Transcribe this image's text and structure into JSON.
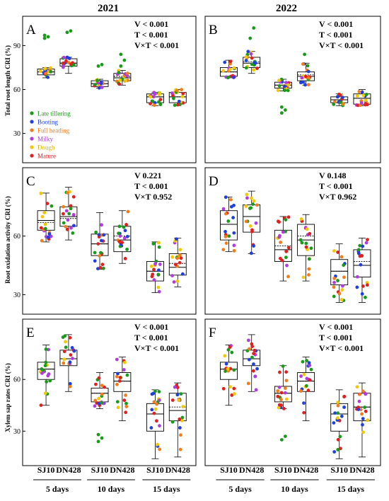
{
  "years": [
    "2021",
    "2022"
  ],
  "groups": [
    {
      "label": "5 days",
      "cultivars": [
        "SJ10",
        "DN428"
      ]
    },
    {
      "label": "10 days",
      "cultivars": [
        "SJ10",
        "DN428"
      ]
    },
    {
      "label": "15 days",
      "cultivars": [
        "SJ10",
        "DN428"
      ]
    }
  ],
  "legend": {
    "title_note": "",
    "items": [
      {
        "name": "Late tillering",
        "color": "#1a9a1a"
      },
      {
        "name": "Booting",
        "color": "#1f3fe0"
      },
      {
        "name": "Full heading",
        "color": "#f07c1c"
      },
      {
        "name": "Milky",
        "color": "#b03be0"
      },
      {
        "name": "Dough",
        "color": "#f0c800"
      },
      {
        "name": "Mature",
        "color": "#e02020"
      }
    ]
  },
  "chart_data": [
    {
      "type": "box",
      "panel": "A",
      "year": "2021",
      "ylabel": "Total root length CRI (%)",
      "ylim": [
        10,
        110
      ],
      "yticks": [
        30,
        60,
        90
      ],
      "stats": [
        "V < 0.001",
        "T < 0.001",
        "V×T < 0.001"
      ],
      "boxes": [
        {
          "cultivar": "SJ10",
          "period": "5 days",
          "q1": 70,
          "median": 72,
          "mean": 72,
          "q3": 74,
          "min": 68,
          "max": 75,
          "outliers": [
            95,
            96,
            97
          ]
        },
        {
          "cultivar": "DN428",
          "period": "5 days",
          "q1": 76,
          "median": 78,
          "mean": 78,
          "q3": 81,
          "min": 71,
          "max": 82,
          "outliers": [
            99,
            100
          ]
        },
        {
          "cultivar": "SJ10",
          "period": "10 days",
          "q1": 62,
          "median": 64,
          "mean": 64,
          "q3": 66,
          "min": 61,
          "max": 67,
          "outliers": [
            76,
            77
          ]
        },
        {
          "cultivar": "DN428",
          "period": "10 days",
          "q1": 66,
          "median": 68,
          "mean": 69,
          "q3": 71,
          "min": 63,
          "max": 73,
          "outliers": [
            76,
            80,
            84
          ]
        },
        {
          "cultivar": "SJ10",
          "period": "15 days",
          "q1": 51,
          "median": 55,
          "mean": 55,
          "q3": 57,
          "min": 49,
          "max": 58,
          "outliers": []
        },
        {
          "cultivar": "DN428",
          "period": "15 days",
          "q1": 51,
          "median": 55,
          "mean": 55,
          "q3": 58,
          "min": 49,
          "max": 60,
          "outliers": []
        }
      ]
    },
    {
      "type": "box",
      "panel": "B",
      "year": "2022",
      "ylabel": "",
      "ylim": [
        10,
        110
      ],
      "yticks": [
        30,
        60,
        90
      ],
      "stats": [
        "V < 0.001",
        "T < 0.001",
        "V×T < 0.001"
      ],
      "boxes": [
        {
          "cultivar": "SJ10",
          "period": "5 days",
          "q1": 69,
          "median": 72,
          "mean": 72,
          "q3": 75,
          "min": 68,
          "max": 80,
          "outliers": []
        },
        {
          "cultivar": "DN428",
          "period": "5 days",
          "q1": 75,
          "median": 78,
          "mean": 79,
          "q3": 82,
          "min": 71,
          "max": 86,
          "outliers": [
            95,
            102
          ]
        },
        {
          "cultivar": "SJ10",
          "period": "10 days",
          "q1": 61,
          "median": 63,
          "mean": 63,
          "q3": 65,
          "min": 59,
          "max": 67,
          "outliers": [
            44,
            46,
            48
          ]
        },
        {
          "cultivar": "DN428",
          "period": "10 days",
          "q1": 66,
          "median": 69,
          "mean": 70,
          "q3": 72,
          "min": 63,
          "max": 78,
          "outliers": [
            84
          ]
        },
        {
          "cultivar": "SJ10",
          "period": "15 days",
          "q1": 51,
          "median": 53,
          "mean": 53,
          "q3": 55,
          "min": 49,
          "max": 57,
          "outliers": []
        },
        {
          "cultivar": "DN428",
          "period": "15 days",
          "q1": 50,
          "median": 54,
          "mean": 54,
          "q3": 57,
          "min": 49,
          "max": 60,
          "outliers": []
        }
      ]
    },
    {
      "type": "box",
      "panel": "C",
      "year": "2021",
      "ylabel": "Root oxidation activity CRI (%)",
      "ylim": [
        20,
        95
      ],
      "yticks": [
        30,
        60
      ],
      "stats": [
        "V 0.221",
        "T < 0.001",
        "V×T 0.952"
      ],
      "boxes": [
        {
          "cultivar": "SJ10",
          "period": "5 days",
          "q1": 63,
          "median": 68,
          "mean": 67,
          "q3": 73,
          "min": 57,
          "max": 82,
          "outliers": []
        },
        {
          "cultivar": "DN428",
          "period": "5 days",
          "q1": 65,
          "median": 70,
          "mean": 69,
          "q3": 75,
          "min": 58,
          "max": 85,
          "outliers": []
        },
        {
          "cultivar": "SJ10",
          "period": "10 days",
          "q1": 50,
          "median": 56,
          "mean": 56,
          "q3": 61,
          "min": 43,
          "max": 72,
          "outliers": []
        },
        {
          "cultivar": "DN428",
          "period": "10 days",
          "q1": 52,
          "median": 58,
          "mean": 60,
          "q3": 65,
          "min": 46,
          "max": 73,
          "outliers": []
        },
        {
          "cultivar": "SJ10",
          "period": "15 days",
          "q1": 37,
          "median": 42,
          "mean": 42,
          "q3": 47,
          "min": 31,
          "max": 57,
          "outliers": []
        },
        {
          "cultivar": "DN428",
          "period": "15 days",
          "q1": 40,
          "median": 44,
          "mean": 46,
          "q3": 51,
          "min": 34,
          "max": 59,
          "outliers": []
        }
      ]
    },
    {
      "type": "box",
      "panel": "D",
      "year": "2022",
      "ylabel": "",
      "ylim": [
        20,
        95
      ],
      "yticks": [
        30,
        60
      ],
      "stats": [
        "V 0.148",
        "T < 0.001",
        "V×T 0.962"
      ],
      "boxes": [
        {
          "cultivar": "SJ10",
          "period": "5 days",
          "q1": 58,
          "median": 66,
          "mean": 66,
          "q3": 73,
          "min": 52,
          "max": 80,
          "outliers": []
        },
        {
          "cultivar": "DN428",
          "period": "5 days",
          "q1": 62,
          "median": 70,
          "mean": 70,
          "q3": 76,
          "min": 51,
          "max": 83,
          "outliers": []
        },
        {
          "cultivar": "SJ10",
          "period": "10 days",
          "q1": 47,
          "median": 53,
          "mean": 55,
          "q3": 63,
          "min": 37,
          "max": 70,
          "outliers": []
        },
        {
          "cultivar": "DN428",
          "period": "10 days",
          "q1": 50,
          "median": 58,
          "mean": 60,
          "q3": 66,
          "min": 37,
          "max": 71,
          "outliers": []
        },
        {
          "cultivar": "SJ10",
          "period": "15 days",
          "q1": 35,
          "median": 42,
          "mean": 42,
          "q3": 48,
          "min": 26,
          "max": 56,
          "outliers": []
        },
        {
          "cultivar": "DN428",
          "period": "15 days",
          "q1": 39,
          "median": 45,
          "mean": 47,
          "q3": 53,
          "min": 26,
          "max": 59,
          "outliers": []
        }
      ]
    },
    {
      "type": "box",
      "panel": "E",
      "year": "2021",
      "ylabel": "Xylem sap rates CRI (%)",
      "ylim": [
        10,
        95
      ],
      "yticks": [
        30,
        60
      ],
      "stats": [
        "V < 0.001",
        "T < 0.001",
        "V×T < 0.001"
      ],
      "boxes": [
        {
          "cultivar": "SJ10",
          "period": "5 days",
          "q1": 60,
          "median": 66,
          "mean": 66,
          "q3": 70,
          "min": 45,
          "max": 80,
          "outliers": []
        },
        {
          "cultivar": "DN428",
          "period": "5 days",
          "q1": 68,
          "median": 72,
          "mean": 72,
          "q3": 77,
          "min": 53,
          "max": 86,
          "outliers": []
        },
        {
          "cultivar": "SJ10",
          "period": "10 days",
          "q1": 47,
          "median": 52,
          "mean": 52,
          "q3": 55,
          "min": 43,
          "max": 64,
          "outliers": [
            24,
            26,
            28
          ]
        },
        {
          "cultivar": "DN428",
          "period": "10 days",
          "q1": 53,
          "median": 59,
          "mean": 59,
          "q3": 64,
          "min": 36,
          "max": 73,
          "outliers": []
        },
        {
          "cultivar": "SJ10",
          "period": "15 days",
          "q1": 30,
          "median": 40,
          "mean": 40,
          "q3": 46,
          "min": 14,
          "max": 54,
          "outliers": []
        },
        {
          "cultivar": "DN428",
          "period": "15 days",
          "q1": 36,
          "median": 42,
          "mean": 44,
          "q3": 52,
          "min": 15,
          "max": 58,
          "outliers": []
        }
      ]
    },
    {
      "type": "box",
      "panel": "F",
      "year": "2022",
      "ylabel": "",
      "ylim": [
        10,
        95
      ],
      "yticks": [
        30,
        60
      ],
      "stats": [
        "V < 0.001",
        "T < 0.001",
        "V×T < 0.001"
      ],
      "boxes": [
        {
          "cultivar": "SJ10",
          "period": "5 days",
          "q1": 60,
          "median": 66,
          "mean": 66,
          "q3": 70,
          "min": 45,
          "max": 80,
          "outliers": []
        },
        {
          "cultivar": "DN428",
          "period": "5 days",
          "q1": 68,
          "median": 72,
          "mean": 72,
          "q3": 77,
          "min": 53,
          "max": 86,
          "outliers": []
        },
        {
          "cultivar": "SJ10",
          "period": "10 days",
          "q1": 47,
          "median": 52,
          "mean": 52,
          "q3": 56,
          "min": 43,
          "max": 68,
          "outliers": [
            25,
            27
          ]
        },
        {
          "cultivar": "DN428",
          "period": "10 days",
          "q1": 53,
          "median": 59,
          "mean": 59,
          "q3": 64,
          "min": 36,
          "max": 73,
          "outliers": []
        },
        {
          "cultivar": "SJ10",
          "period": "15 days",
          "q1": 30,
          "median": 40,
          "mean": 40,
          "q3": 46,
          "min": 14,
          "max": 54,
          "outliers": []
        },
        {
          "cultivar": "DN428",
          "period": "15 days",
          "q1": 36,
          "median": 44,
          "mean": 44,
          "q3": 52,
          "min": 15,
          "max": 58,
          "outliers": []
        }
      ]
    }
  ]
}
